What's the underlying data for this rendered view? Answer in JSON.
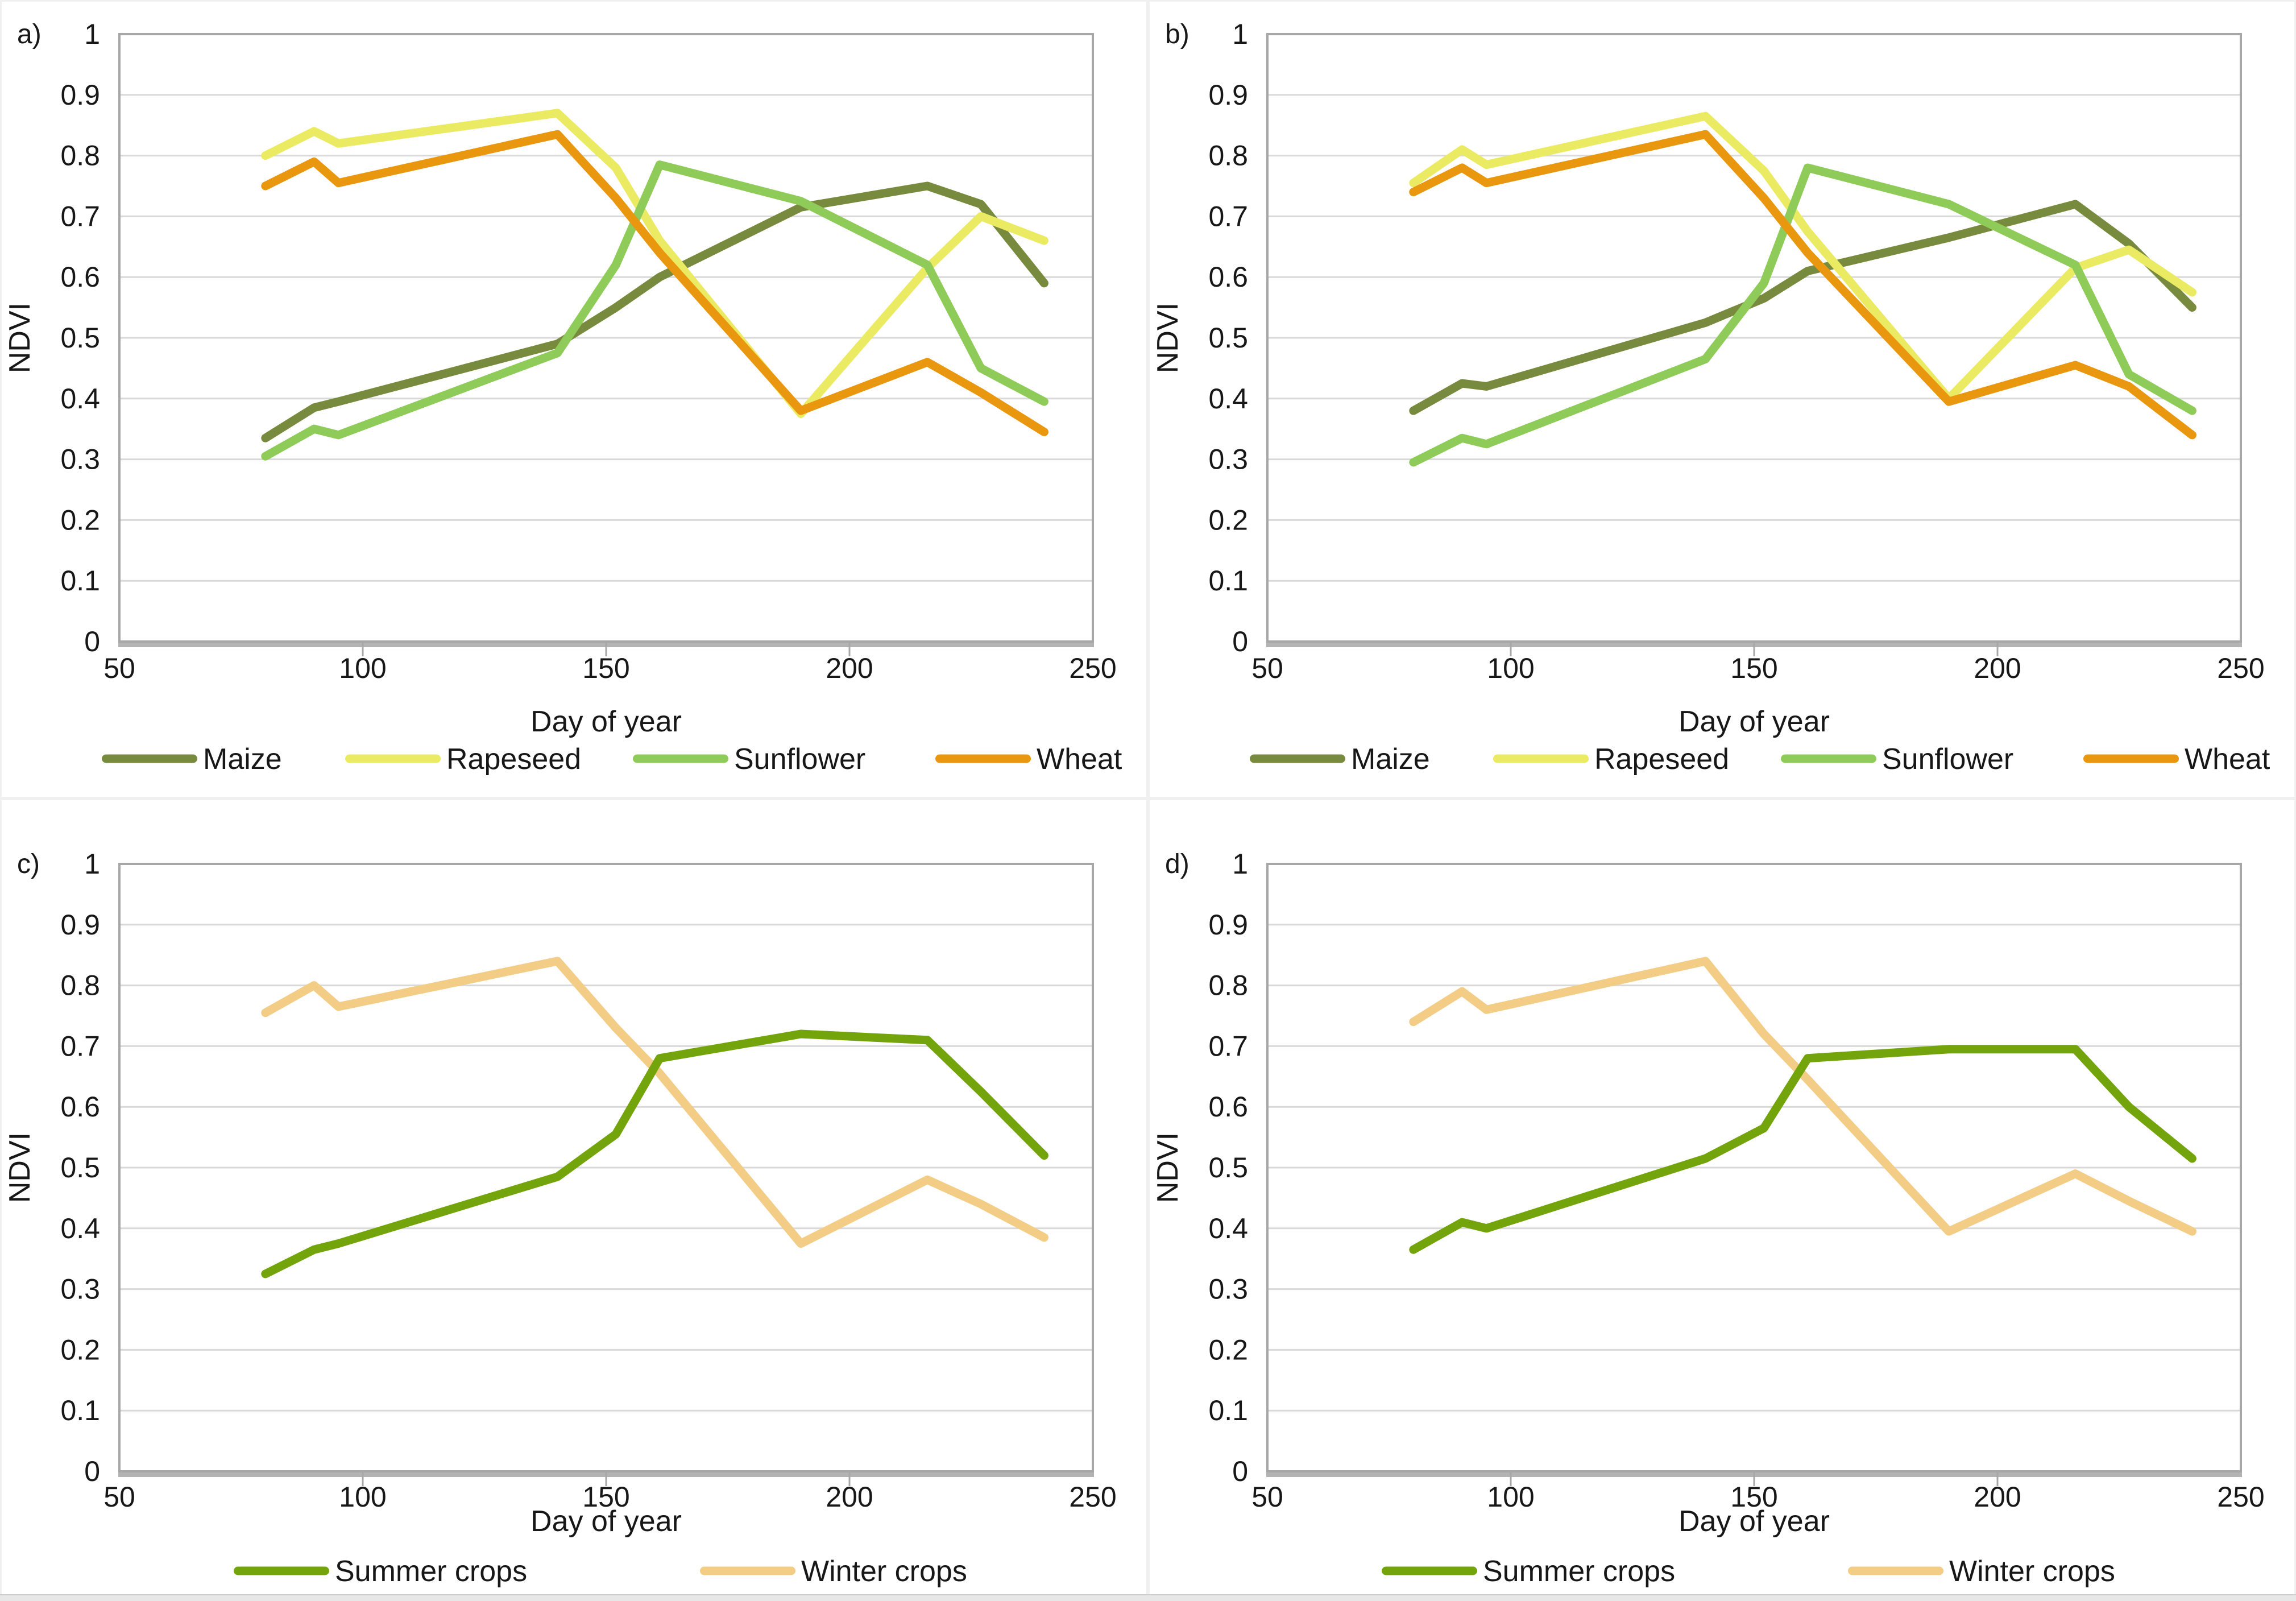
{
  "figure": {
    "background": "#ffffff",
    "frame_color": "#a7a7a7",
    "grid_color": "#d9d9d9",
    "axis_line_color": "#b3b3b3",
    "text_color": "#171717"
  },
  "chart_data": [
    {
      "id": "a",
      "panel_label": "a)",
      "type": "line",
      "xlabel": "Day of year",
      "ylabel": "NDVI",
      "xlim": [
        50,
        250
      ],
      "ylim": [
        0,
        1
      ],
      "xticks": [
        50,
        100,
        150,
        200,
        250
      ],
      "ytick_step": 0.1,
      "grid": "horizontal",
      "legend_position": "bottom",
      "x": [
        80,
        90,
        95,
        140,
        152,
        161,
        190,
        216,
        227,
        240
      ],
      "series": [
        {
          "name": "Maize",
          "color": "#778A3D",
          "values": [
            0.335,
            0.385,
            0.395,
            0.49,
            0.55,
            0.6,
            0.715,
            0.75,
            0.72,
            0.59
          ]
        },
        {
          "name": "Rapeseed",
          "color": "#EBEB63",
          "values": [
            0.8,
            0.84,
            0.82,
            0.87,
            0.78,
            0.66,
            0.375,
            0.615,
            0.7,
            0.66
          ]
        },
        {
          "name": "Sunflower",
          "color": "#8FCB58",
          "values": [
            0.305,
            0.35,
            0.34,
            0.475,
            0.62,
            0.785,
            0.725,
            0.62,
            0.45,
            0.395
          ]
        },
        {
          "name": "Wheat",
          "color": "#E8970E",
          "values": [
            0.75,
            0.79,
            0.755,
            0.835,
            0.73,
            0.64,
            0.38,
            0.46,
            0.41,
            0.345
          ]
        }
      ],
      "z_order": [
        0,
        1,
        2,
        3
      ]
    },
    {
      "id": "b",
      "panel_label": "b)",
      "type": "line",
      "xlabel": "Day of year",
      "ylabel": "NDVI",
      "xlim": [
        50,
        250
      ],
      "ylim": [
        0,
        1
      ],
      "xticks": [
        50,
        100,
        150,
        200,
        250
      ],
      "ytick_step": 0.1,
      "grid": "horizontal",
      "legend_position": "bottom",
      "x": [
        80,
        90,
        95,
        140,
        152,
        161,
        190,
        216,
        227,
        240
      ],
      "series": [
        {
          "name": "Maize",
          "color": "#778A3D",
          "values": [
            0.38,
            0.425,
            0.42,
            0.525,
            0.565,
            0.61,
            0.665,
            0.72,
            0.655,
            0.55
          ]
        },
        {
          "name": "Rapeseed",
          "color": "#EBEB63",
          "values": [
            0.755,
            0.81,
            0.785,
            0.865,
            0.775,
            0.675,
            0.4,
            0.615,
            0.645,
            0.575
          ]
        },
        {
          "name": "Sunflower",
          "color": "#8FCB58",
          "values": [
            0.295,
            0.335,
            0.325,
            0.465,
            0.59,
            0.78,
            0.72,
            0.62,
            0.44,
            0.38
          ]
        },
        {
          "name": "Wheat",
          "color": "#E8970E",
          "values": [
            0.74,
            0.78,
            0.755,
            0.835,
            0.73,
            0.64,
            0.395,
            0.455,
            0.42,
            0.34
          ]
        }
      ],
      "z_order": [
        0,
        1,
        2,
        3
      ]
    },
    {
      "id": "c",
      "panel_label": "c)",
      "type": "line",
      "xlabel": "Day of year",
      "ylabel": "NDVI",
      "xlim": [
        50,
        250
      ],
      "ylim": [
        0,
        1
      ],
      "xticks": [
        50,
        100,
        150,
        200,
        250
      ],
      "ytick_step": 0.1,
      "grid": "horizontal",
      "legend_position": "bottom",
      "x": [
        80,
        90,
        95,
        140,
        152,
        161,
        190,
        216,
        227,
        240
      ],
      "series": [
        {
          "name": "Summer crops",
          "color": "#74A40B",
          "values": [
            0.325,
            0.365,
            0.375,
            0.485,
            0.555,
            0.68,
            0.72,
            0.71,
            0.625,
            0.52
          ]
        },
        {
          "name": "Winter crops",
          "color": "#F3CC86",
          "values": [
            0.755,
            0.8,
            0.765,
            0.84,
            0.73,
            0.655,
            0.375,
            0.48,
            0.44,
            0.385
          ]
        }
      ],
      "z_order": [
        1,
        0
      ]
    },
    {
      "id": "d",
      "panel_label": "d)",
      "type": "line",
      "xlabel": "Day of year",
      "ylabel": "NDVI",
      "xlim": [
        50,
        250
      ],
      "ylim": [
        0,
        1
      ],
      "xticks": [
        50,
        100,
        150,
        200,
        250
      ],
      "ytick_step": 0.1,
      "grid": "horizontal",
      "legend_position": "bottom",
      "x": [
        80,
        90,
        95,
        140,
        152,
        161,
        190,
        216,
        227,
        240
      ],
      "series": [
        {
          "name": "Summer crops",
          "color": "#74A40B",
          "values": [
            0.365,
            0.41,
            0.4,
            0.515,
            0.565,
            0.68,
            0.695,
            0.695,
            0.6,
            0.515
          ]
        },
        {
          "name": "Winter crops",
          "color": "#F3CC86",
          "values": [
            0.74,
            0.79,
            0.76,
            0.84,
            0.72,
            0.645,
            0.395,
            0.49,
            0.445,
            0.395
          ]
        }
      ],
      "z_order": [
        1,
        0
      ]
    }
  ]
}
